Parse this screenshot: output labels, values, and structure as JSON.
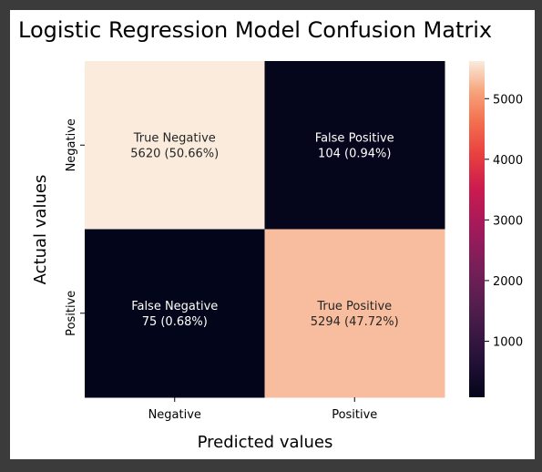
{
  "chart_data": {
    "type": "heatmap",
    "title": "Logistic Regression Model Confusion Matrix",
    "xlabel": "Predicted values",
    "ylabel": "Actual values",
    "x_categories": [
      "Negative",
      "Positive"
    ],
    "y_categories": [
      "Negative",
      "Positive"
    ],
    "values": [
      [
        5620,
        104
      ],
      [
        75,
        5294
      ]
    ],
    "cell_labels": [
      [
        "True Negative",
        "False Positive"
      ],
      [
        "False Negative",
        "True Positive"
      ]
    ],
    "cell_values_text": [
      [
        "5620 (50.66%)",
        "104 (0.94%)"
      ],
      [
        "75 (0.68%)",
        "5294 (47.72%)"
      ]
    ],
    "colorbar": {
      "ticks": [
        1000,
        2000,
        3000,
        4000,
        5000
      ],
      "tick_labels": [
        "1000",
        "2000",
        "3000",
        "4000",
        "5000"
      ],
      "colormap": "rocket"
    }
  },
  "colors": {
    "page_background": "#3b3b3b",
    "figure_background": "#ffffff",
    "dark_text": "#262626",
    "light_text": "#ffffff"
  }
}
